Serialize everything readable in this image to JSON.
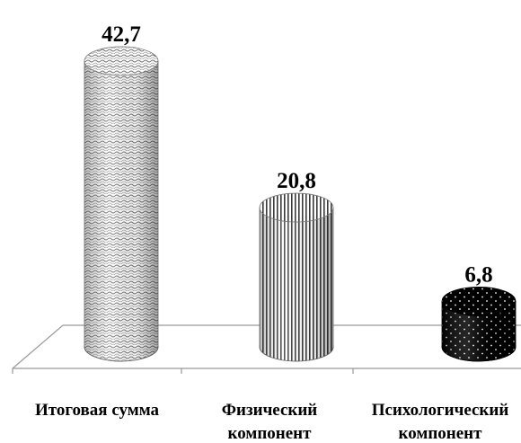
{
  "chart_data": {
    "type": "bar",
    "style": "3d-cylinder",
    "categories": [
      [
        "Итоговая сумма"
      ],
      [
        "Физический",
        "компонент"
      ],
      [
        "Психологический",
        "компонент"
      ]
    ],
    "values": [
      42.7,
      20.8,
      6.8
    ],
    "value_labels": [
      "42,7",
      "20,8",
      "6,8"
    ],
    "fills": [
      "wavy-light",
      "vertical-stripes",
      "black-dotted"
    ],
    "ylim": [
      0,
      45
    ],
    "grid": false,
    "legend": "none",
    "colors": {
      "axis": "#999999",
      "bar_dark": "#000000",
      "bar_light": "#ffffff"
    }
  }
}
